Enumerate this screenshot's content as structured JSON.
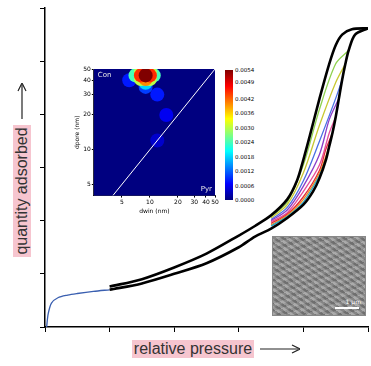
{
  "chart_data": [
    {
      "type": "line",
      "x_label": "relative pressure",
      "y_label": "quantity adsorbed",
      "xlim": [
        0,
        1
      ],
      "ylim": [
        0,
        6
      ],
      "xticks": [
        0,
        0.2,
        0.4,
        0.6,
        0.8,
        1
      ],
      "yticks": [
        0,
        1,
        2,
        3,
        4,
        5,
        6
      ],
      "tick_labels": false,
      "grid": false,
      "series": [
        {
          "color": "#3a5fb0",
          "x": [
            0.005,
            0.01,
            0.02,
            0.04,
            0.07,
            0.1,
            0.15,
            0.2
          ],
          "values": [
            0,
            0.25,
            0.45,
            0.55,
            0.6,
            0.63,
            0.67,
            0.7
          ]
        },
        {
          "color": "#8fd14f",
          "x": [
            0.94,
            0.9,
            0.85,
            0.8,
            0.75,
            0.7
          ],
          "values": [
            5.2,
            4.95,
            4.1,
            3.05,
            2.35,
            2.08
          ]
        },
        {
          "color": "#c8c832",
          "x": [
            0.93,
            0.9,
            0.85,
            0.8,
            0.75,
            0.7
          ],
          "values": [
            4.95,
            4.6,
            3.8,
            2.9,
            2.3,
            2.05
          ]
        },
        {
          "color": "#4a6fe3",
          "x": [
            0.92,
            0.9,
            0.85,
            0.8,
            0.75,
            0.7
          ],
          "values": [
            4.65,
            4.3,
            3.5,
            2.75,
            2.25,
            2.02
          ]
        },
        {
          "color": "#8a3cc8",
          "x": [
            0.91,
            0.88,
            0.85,
            0.8,
            0.75,
            0.7
          ],
          "values": [
            4.3,
            3.9,
            3.25,
            2.65,
            2.2,
            2.0
          ]
        },
        {
          "color": "#e64d9a",
          "x": [
            0.9,
            0.88,
            0.85,
            0.8,
            0.75,
            0.7
          ],
          "values": [
            3.95,
            3.65,
            3.05,
            2.55,
            2.15,
            1.98
          ]
        },
        {
          "color": "#e0283c",
          "x": [
            0.89,
            0.87,
            0.85,
            0.8,
            0.75,
            0.7
          ],
          "values": [
            3.65,
            3.35,
            2.95,
            2.45,
            2.12,
            1.95
          ]
        },
        {
          "color": "#f08c1e",
          "x": [
            0.88,
            0.85,
            0.8,
            0.75,
            0.7
          ],
          "values": [
            3.4,
            2.9,
            2.4,
            2.1,
            1.92
          ]
        },
        {
          "color": "#23a5c8",
          "x": [
            0.87,
            0.85,
            0.8,
            0.75,
            0.7
          ],
          "values": [
            3.15,
            2.85,
            2.35,
            2.08,
            1.9
          ]
        },
        {
          "color": "#000000",
          "x": [
            0.2,
            0.3,
            0.4,
            0.5,
            0.6,
            0.65,
            0.7,
            0.75,
            0.8,
            0.83,
            0.85,
            0.87,
            0.88,
            0.89,
            0.9,
            0.91,
            0.92,
            0.93,
            0.94,
            0.96,
            1.0
          ],
          "values": [
            0.7,
            0.82,
            1.0,
            1.2,
            1.5,
            1.7,
            1.85,
            2.05,
            2.3,
            2.55,
            2.8,
            3.15,
            3.4,
            3.65,
            3.95,
            4.3,
            4.65,
            4.95,
            5.2,
            5.5,
            5.62
          ]
        },
        {
          "color": "#000000",
          "x": [
            1.0,
            0.95,
            0.92,
            0.9,
            0.88,
            0.85,
            0.82,
            0.8,
            0.78,
            0.75,
            0.7,
            0.65,
            0.6,
            0.5,
            0.4,
            0.3,
            0.2
          ],
          "values": [
            5.62,
            5.6,
            5.5,
            5.3,
            4.95,
            4.3,
            3.6,
            3.15,
            2.75,
            2.4,
            2.1,
            1.9,
            1.72,
            1.38,
            1.12,
            0.9,
            0.76
          ]
        }
      ]
    },
    {
      "type": "heatmap",
      "x_label": "dwin (nm)",
      "y_label": "dpore (nm)",
      "log": true,
      "grid": false,
      "xlim": [
        2.5,
        50
      ],
      "ylim": [
        4,
        50
      ],
      "xticks": [
        5,
        10,
        20,
        30,
        40,
        50
      ],
      "yticks": [
        5,
        10,
        20,
        30,
        40,
        50
      ],
      "annotations": [
        "Con",
        "Pyr"
      ],
      "diagonal": {
        "x": [
          4,
          50
        ],
        "values": [
          4,
          50
        ]
      },
      "cells": {
        "x": [
          12,
          15,
          12,
          6,
          9,
          9,
          7,
          11,
          8,
          10,
          8,
          10,
          9,
          9,
          8,
          10,
          9
        ],
        "y": [
          12,
          20,
          30,
          40,
          35,
          38,
          44,
          44,
          41,
          41,
          47,
          47,
          47,
          41,
          44,
          44,
          44
        ],
        "values": [
          0.0004,
          0.0006,
          0.0008,
          0.0008,
          0.001,
          0.0018,
          0.0024,
          0.0024,
          0.003,
          0.003,
          0.003,
          0.003,
          0.004,
          0.004,
          0.0045,
          0.0045,
          0.0054
        ]
      },
      "colorbar": {
        "range": [
          0,
          0.0054
        ],
        "ticks": [
          {
            "value": 0.0054,
            "label": "0.0054"
          },
          {
            "value": 0.0049,
            "label": "0.0049"
          },
          {
            "value": 0.0042,
            "label": "0.0042"
          },
          {
            "value": 0.0036,
            "label": "0.0036"
          },
          {
            "value": 0.003,
            "label": "0.0030"
          },
          {
            "value": 0.0024,
            "label": "0.0024"
          },
          {
            "value": 0.0018,
            "label": "0.0018"
          },
          {
            "value": 0.0012,
            "label": "0.0012"
          },
          {
            "value": 0.0006,
            "label": "0.0006"
          },
          {
            "value": 0,
            "label": "0.0000"
          }
        ]
      }
    }
  ],
  "inset_image": {
    "scale_bar": "1 µm"
  }
}
